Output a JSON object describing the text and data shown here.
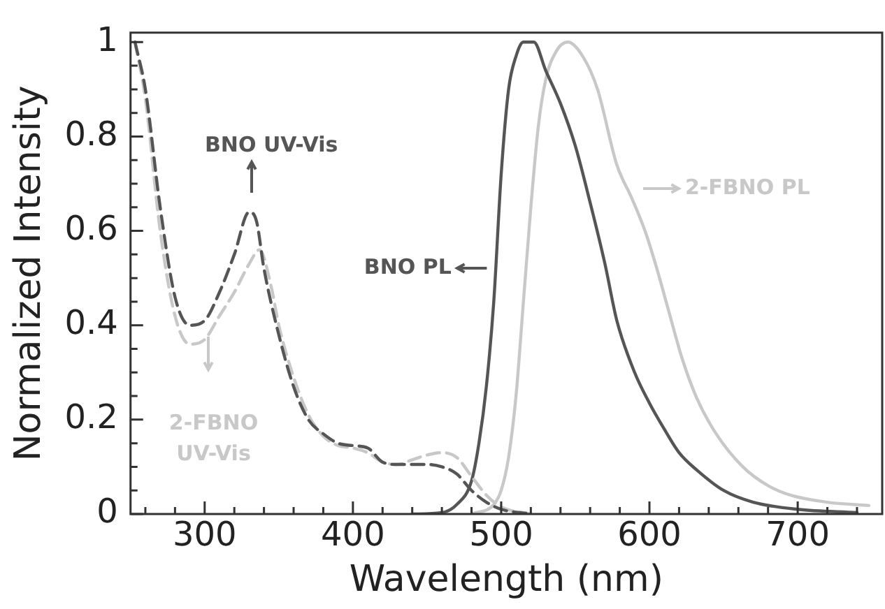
{
  "chart_data": {
    "type": "line",
    "xlabel": "Wavelength (nm)",
    "ylabel": "Normalized Intensity",
    "xlim": [
      250,
      757
    ],
    "ylim": [
      0,
      1.02
    ],
    "xticks": [
      {
        "value": 260,
        "label": null
      },
      {
        "value": 280,
        "label": null
      },
      300,
      {
        "value": 320,
        "label": null
      },
      {
        "value": 340,
        "label": null
      },
      {
        "value": 360,
        "label": null
      },
      {
        "value": 380,
        "label": null
      },
      400,
      {
        "value": 420,
        "label": null
      },
      {
        "value": 440,
        "label": null
      },
      {
        "value": 460,
        "label": null
      },
      {
        "value": 480,
        "label": null
      },
      500,
      {
        "value": 520,
        "label": null
      },
      {
        "value": 540,
        "label": null
      },
      {
        "value": 560,
        "label": null
      },
      {
        "value": 580,
        "label": null
      },
      600,
      {
        "value": 620,
        "label": null
      },
      {
        "value": 640,
        "label": null
      },
      {
        "value": 660,
        "label": null
      },
      {
        "value": 680,
        "label": null
      },
      700,
      {
        "value": 720,
        "label": null
      },
      {
        "value": 740,
        "label": null
      }
    ],
    "yticks": [
      0,
      {
        "value": 0.05,
        "label": null
      },
      {
        "value": 0.1,
        "label": null
      },
      {
        "value": 0.15,
        "label": null
      },
      0.2,
      {
        "value": 0.25,
        "label": null
      },
      {
        "value": 0.3,
        "label": null
      },
      {
        "value": 0.35,
        "label": null
      },
      0.4,
      {
        "value": 0.45,
        "label": null
      },
      {
        "value": 0.5,
        "label": null
      },
      {
        "value": 0.55,
        "label": null
      },
      0.6,
      {
        "value": 0.65,
        "label": null
      },
      {
        "value": 0.7,
        "label": null
      },
      {
        "value": 0.75,
        "label": null
      },
      0.8,
      {
        "value": 0.85,
        "label": null
      },
      {
        "value": 0.9,
        "label": null
      },
      {
        "value": 0.95,
        "label": null
      },
      1
    ],
    "grid": false,
    "marker": "none",
    "series": [
      {
        "name": "BNO UV-Vis",
        "color": "#555555",
        "line_style": "dashed",
        "x": [
          253,
          260,
          270,
          280,
          290,
          300,
          310,
          320,
          330,
          335,
          340,
          350,
          360,
          370,
          380,
          390,
          400,
          410,
          420,
          430,
          450,
          460,
          470,
          480,
          490,
          500,
          520
        ],
        "values": [
          1.0,
          0.9,
          0.65,
          0.46,
          0.4,
          0.41,
          0.47,
          0.55,
          0.64,
          0.62,
          0.52,
          0.38,
          0.27,
          0.2,
          0.17,
          0.15,
          0.145,
          0.14,
          0.11,
          0.105,
          0.105,
          0.1,
          0.085,
          0.05,
          0.025,
          0.01,
          0
        ]
      },
      {
        "name": "2-FBNO UV-Vis",
        "color": "#c8c8c8",
        "line_style": "dashed",
        "x": [
          253,
          260,
          270,
          280,
          290,
          300,
          310,
          320,
          330,
          337,
          345,
          350,
          360,
          370,
          380,
          390,
          400,
          410,
          420,
          430,
          440,
          450,
          460,
          470,
          480,
          490,
          500,
          520
        ],
        "values": [
          1.0,
          0.88,
          0.6,
          0.42,
          0.36,
          0.37,
          0.42,
          0.47,
          0.53,
          0.56,
          0.48,
          0.4,
          0.29,
          0.21,
          0.165,
          0.145,
          0.14,
          0.13,
          0.11,
          0.105,
          0.115,
          0.125,
          0.13,
          0.12,
          0.08,
          0.04,
          0.015,
          0
        ]
      },
      {
        "name": "BNO PL",
        "color": "#555555",
        "line_style": "solid",
        "x": [
          440,
          460,
          470,
          480,
          485,
          490,
          495,
          500,
          505,
          510,
          515,
          522,
          530,
          540,
          550,
          560,
          570,
          578,
          590,
          600,
          610,
          620,
          632,
          650,
          670,
          700,
          740
        ],
        "values": [
          0,
          0.003,
          0.02,
          0.07,
          0.15,
          0.27,
          0.45,
          0.72,
          0.9,
          0.97,
          1.0,
          1.0,
          0.94,
          0.87,
          0.78,
          0.66,
          0.53,
          0.41,
          0.3,
          0.235,
          0.18,
          0.13,
          0.093,
          0.05,
          0.025,
          0.01,
          0.003
        ]
      },
      {
        "name": "2-FBNO PL",
        "color": "#c8c8c8",
        "line_style": "solid",
        "x": [
          480,
          495,
          500,
          505,
          510,
          515,
          520,
          525,
          530,
          537,
          545,
          555,
          565,
          578,
          588,
          597,
          605,
          613,
          622,
          632,
          645,
          663,
          680,
          695,
          720,
          748
        ],
        "values": [
          0,
          0.02,
          0.05,
          0.12,
          0.25,
          0.45,
          0.65,
          0.82,
          0.92,
          0.98,
          1.0,
          0.97,
          0.9,
          0.74,
          0.67,
          0.6,
          0.52,
          0.43,
          0.33,
          0.245,
          0.17,
          0.1,
          0.06,
          0.04,
          0.025,
          0.018
        ]
      }
    ]
  }
}
